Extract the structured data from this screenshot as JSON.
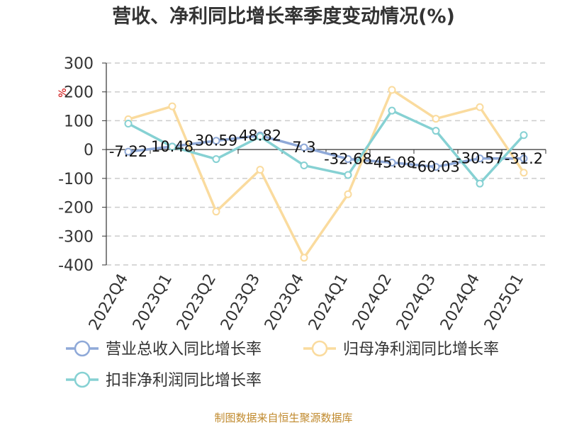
{
  "chart_data": {
    "type": "line",
    "title": "营收、净利同比增长率季度变动情况(%)",
    "unit": "%",
    "categories": [
      "2022Q4",
      "2023Q1",
      "2023Q2",
      "2023Q3",
      "2023Q4",
      "2024Q1",
      "2024Q2",
      "2024Q3",
      "2024Q4",
      "2025Q1"
    ],
    "ylim": [
      -400,
      300
    ],
    "yticks": [
      300,
      200,
      100,
      0,
      -100,
      -200,
      -300,
      -400
    ],
    "grid": true,
    "legend_position": "bottom",
    "series": [
      {
        "name": "营业总收入同比增长率",
        "color": "#8fa9d8",
        "values": [
          -7.22,
          10.48,
          30.59,
          48.82,
          7.3,
          -32.68,
          -45.08,
          -60.03,
          -30.57,
          -31.2
        ],
        "labels": [
          "-7.22",
          "10.48",
          "30.59",
          "48.82",
          "7.3",
          "-32.68",
          "-45.08",
          "-60.03",
          "-30.57",
          "-31.2"
        ]
      },
      {
        "name": "归母净利润同比增长率",
        "color": "#fadb9e",
        "values": [
          105,
          150,
          -215,
          -70,
          -375,
          -155,
          207,
          107,
          147,
          -80
        ]
      },
      {
        "name": "扣非净利润同比增长率",
        "color": "#86d1d3",
        "values": [
          90,
          10,
          -33,
          45,
          -55,
          -88,
          135,
          65,
          -118,
          50
        ]
      }
    ]
  },
  "source": "制图数据来自恒生聚源数据库"
}
